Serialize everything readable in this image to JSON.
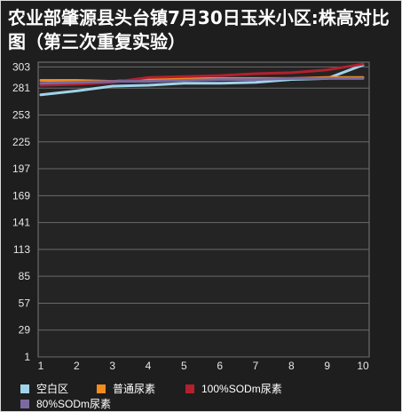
{
  "title": "农业部肇源县头台镇7月30日玉米小区:株高对比图（第三次重复实验）",
  "colors": {
    "background": "#1e1e1e",
    "plot_background": "#242424",
    "grid": "#6a6a6a",
    "text": "#e6e6e6"
  },
  "chart_data": {
    "type": "line",
    "title": "农业部肇源县头台镇7月30日玉米小区:株高对比图（第三次重复实验）",
    "xlabel": "",
    "ylabel": "",
    "x": [
      1,
      2,
      3,
      4,
      5,
      6,
      7,
      8,
      9,
      10
    ],
    "x_tick_labels": [
      "1",
      "2",
      "3",
      "4",
      "5",
      "6",
      "7",
      "8",
      "9",
      "10"
    ],
    "y_ticks": [
      1,
      29,
      57,
      85,
      113,
      141,
      169,
      197,
      225,
      253,
      281,
      303
    ],
    "y_tick_labels": [
      "1",
      "29",
      "57",
      "85",
      "113",
      "141",
      "169",
      "197",
      "225",
      "253",
      "281",
      "303"
    ],
    "ylim": [
      1,
      308
    ],
    "grid": true,
    "legend_position": "bottom",
    "series": [
      {
        "name": "空白区",
        "color": "#9fd3ea",
        "values": [
          274,
          278,
          283,
          284,
          286,
          286,
          287,
          290,
          291,
          305
        ]
      },
      {
        "name": "普通尿素",
        "color": "#f28c1c",
        "values": [
          289,
          289,
          288,
          290,
          291,
          291,
          291,
          291,
          292,
          292
        ]
      },
      {
        "name": "100%SODm尿素",
        "color": "#b3202e",
        "values": [
          284,
          285,
          287,
          292,
          293,
          294,
          296,
          297,
          300,
          306
        ]
      },
      {
        "name": "80%SODm尿素",
        "color": "#7a6aa0",
        "values": [
          286,
          287,
          288,
          288,
          289,
          290,
          290,
          291,
          291,
          291
        ]
      }
    ]
  }
}
